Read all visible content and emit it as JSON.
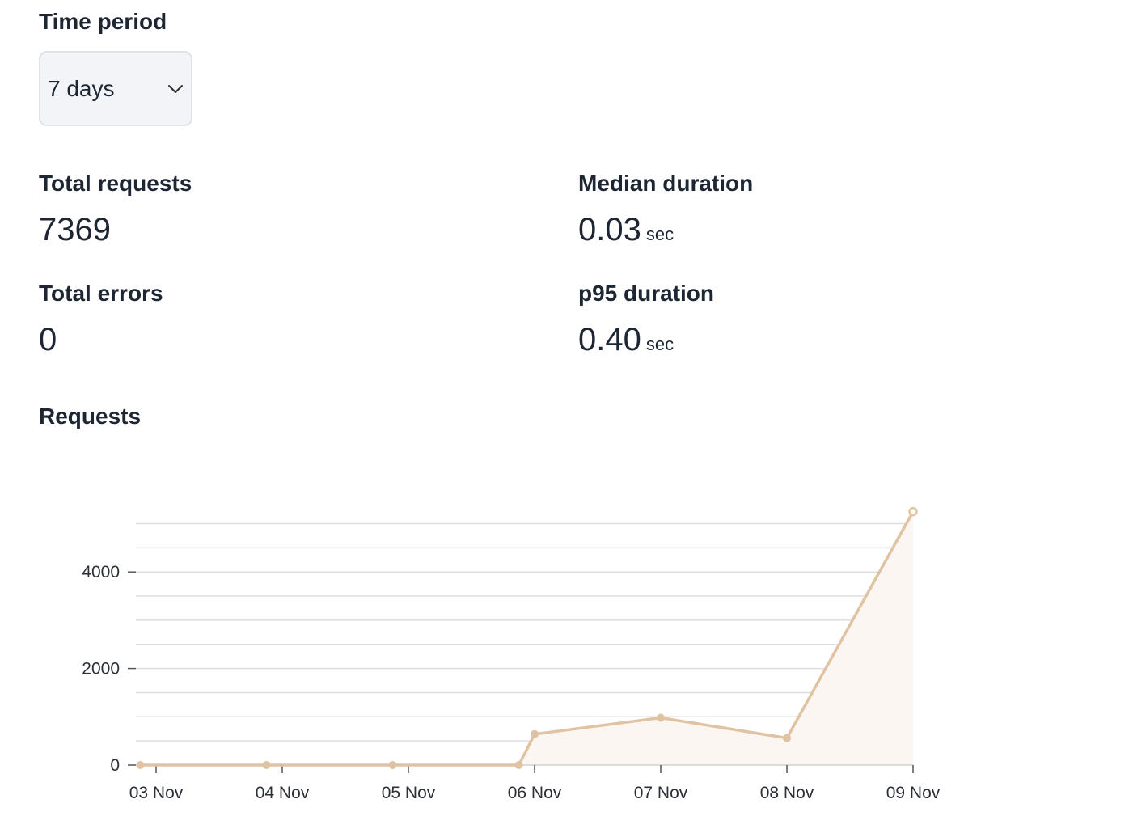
{
  "filter": {
    "label": "Time period",
    "selected": "7 days"
  },
  "stats": {
    "total_requests": {
      "label": "Total requests",
      "value": "7369"
    },
    "median_duration": {
      "label": "Median duration",
      "value": "0.03",
      "unit": "sec"
    },
    "total_errors": {
      "label": "Total errors",
      "value": "0"
    },
    "p95_duration": {
      "label": "p95 duration",
      "value": "0.40",
      "unit": "sec"
    }
  },
  "chart_section": {
    "title": "Requests"
  },
  "colors": {
    "line": "#e0c3a3",
    "area": "#fbf6f1",
    "grid": "#dedede"
  },
  "chart_data": {
    "type": "area",
    "title": "",
    "xlabel": "",
    "ylabel": "",
    "x_ticks": [
      "03 Nov",
      "04 Nov",
      "05 Nov",
      "06 Nov",
      "07 Nov",
      "08 Nov",
      "09 Nov"
    ],
    "y_ticks": [
      0,
      2000,
      4000
    ],
    "ylim": [
      0,
      5300
    ],
    "grid": true,
    "series": [
      {
        "points": [
          {
            "x": "2023-11-02T21:00",
            "y": 0
          },
          {
            "x": "2023-11-03T21:00",
            "y": 0
          },
          {
            "x": "2023-11-04T21:00",
            "y": 0
          },
          {
            "x": "2023-11-05T21:00",
            "y": 0
          },
          {
            "x": "2023-11-06T00:00",
            "y": 640
          },
          {
            "x": "2023-11-07T00:00",
            "y": 980
          },
          {
            "x": "2023-11-08T00:00",
            "y": 560
          },
          {
            "x": "2023-11-09T00:00",
            "y": 5250
          }
        ]
      }
    ]
  }
}
